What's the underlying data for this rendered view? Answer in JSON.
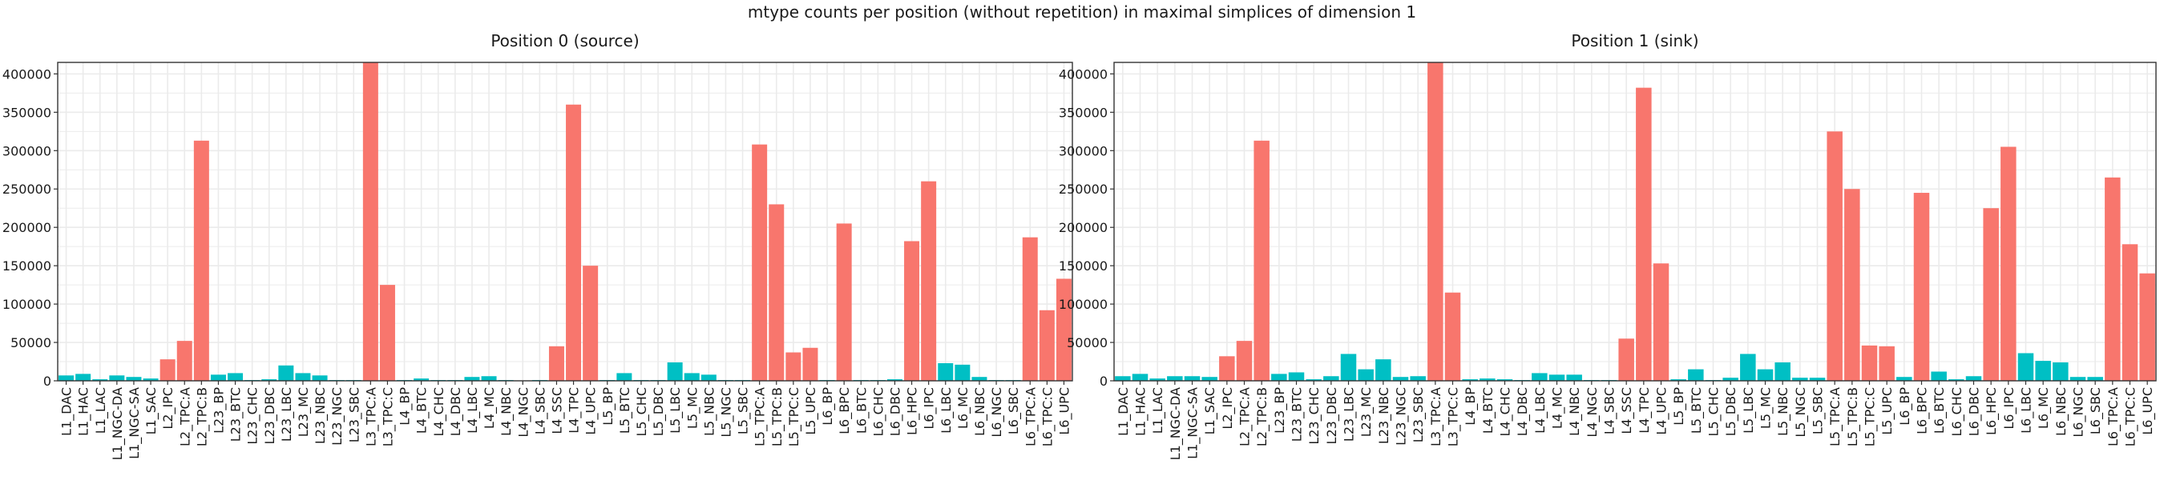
{
  "figure": {
    "title": "mtype counts per position (without repetition) in maximal simplices of dimension 1"
  },
  "colors": {
    "excitatory": "#F8766D",
    "inhibitory": "#00BFC4",
    "panel_bg": "#FFFFFF",
    "grid": "#EBEBEB",
    "border": "#333333"
  },
  "chart_data": [
    {
      "type": "bar",
      "title": "Position 0 (source)",
      "xlabel": "",
      "ylabel": "",
      "ylim": [
        0,
        415000
      ],
      "yticks": [
        0,
        50000,
        100000,
        150000,
        200000,
        250000,
        300000,
        350000,
        400000
      ],
      "grid": true,
      "legend": "none",
      "categories": [
        "L1_DAC",
        "L1_HAC",
        "L1_LAC",
        "L1_NGC-DA",
        "L1_NGC-SA",
        "L1_SAC",
        "L2_IPC",
        "L2_TPC:A",
        "L2_TPC:B",
        "L23_BP",
        "L23_BTC",
        "L23_CHC",
        "L23_DBC",
        "L23_LBC",
        "L23_MC",
        "L23_NBC",
        "L23_NGC",
        "L23_SBC",
        "L3_TPC:A",
        "L3_TPC:C",
        "L4_BP",
        "L4_BTC",
        "L4_CHC",
        "L4_DBC",
        "L4_LBC",
        "L4_MC",
        "L4_NBC",
        "L4_NGC",
        "L4_SBC",
        "L4_SSC",
        "L4_TPC",
        "L4_UPC",
        "L5_BP",
        "L5_BTC",
        "L5_CHC",
        "L5_DBC",
        "L5_LBC",
        "L5_MC",
        "L5_NBC",
        "L5_NGC",
        "L5_SBC",
        "L5_TPC:A",
        "L5_TPC:B",
        "L5_TPC:C",
        "L5_UPC",
        "L6_BP",
        "L6_BPC",
        "L6_BTC",
        "L6_CHC",
        "L6_DBC",
        "L6_HPC",
        "L6_IPC",
        "L6_LBC",
        "L6_MC",
        "L6_NBC",
        "L6_NGC",
        "L6_SBC",
        "L6_TPC:A",
        "L6_TPC:C",
        "L6_UPC"
      ],
      "groups": [
        "inhibitory",
        "inhibitory",
        "inhibitory",
        "inhibitory",
        "inhibitory",
        "inhibitory",
        "excitatory",
        "excitatory",
        "excitatory",
        "inhibitory",
        "inhibitory",
        "inhibitory",
        "inhibitory",
        "inhibitory",
        "inhibitory",
        "inhibitory",
        "inhibitory",
        "inhibitory",
        "excitatory",
        "excitatory",
        "inhibitory",
        "inhibitory",
        "inhibitory",
        "inhibitory",
        "inhibitory",
        "inhibitory",
        "inhibitory",
        "inhibitory",
        "inhibitory",
        "excitatory",
        "excitatory",
        "excitatory",
        "inhibitory",
        "inhibitory",
        "inhibitory",
        "inhibitory",
        "inhibitory",
        "inhibitory",
        "inhibitory",
        "inhibitory",
        "inhibitory",
        "excitatory",
        "excitatory",
        "excitatory",
        "excitatory",
        "inhibitory",
        "excitatory",
        "inhibitory",
        "inhibitory",
        "inhibitory",
        "excitatory",
        "excitatory",
        "inhibitory",
        "inhibitory",
        "inhibitory",
        "inhibitory",
        "inhibitory",
        "excitatory",
        "excitatory",
        "excitatory"
      ],
      "values": [
        7000,
        9000,
        2000,
        7000,
        5000,
        3000,
        28000,
        52000,
        313000,
        8000,
        10000,
        1000,
        2000,
        20000,
        10000,
        7000,
        1000,
        1000,
        415000,
        125000,
        1000,
        3000,
        1000,
        1000,
        5000,
        6000,
        1000,
        0,
        1000,
        45000,
        360000,
        150000,
        1000,
        10000,
        1000,
        1000,
        24000,
        10000,
        8000,
        1000,
        1000,
        308000,
        230000,
        37000,
        43000,
        1000,
        205000,
        1000,
        1000,
        2000,
        182000,
        260000,
        23000,
        21000,
        5000,
        1000,
        1000,
        187000,
        92000,
        133000
      ]
    },
    {
      "type": "bar",
      "title": "Position 1 (sink)",
      "xlabel": "",
      "ylabel": "",
      "ylim": [
        0,
        415000
      ],
      "yticks": [
        0,
        50000,
        100000,
        150000,
        200000,
        250000,
        300000,
        350000,
        400000
      ],
      "grid": true,
      "legend": "none",
      "categories": [
        "L1_DAC",
        "L1_HAC",
        "L1_LAC",
        "L1_NGC-DA",
        "L1_NGC-SA",
        "L1_SAC",
        "L2_IPC",
        "L2_TPC:A",
        "L2_TPC:B",
        "L23_BP",
        "L23_BTC",
        "L23_CHC",
        "L23_DBC",
        "L23_LBC",
        "L23_MC",
        "L23_NBC",
        "L23_NGC",
        "L23_SBC",
        "L3_TPC:A",
        "L3_TPC:C",
        "L4_BP",
        "L4_BTC",
        "L4_CHC",
        "L4_DBC",
        "L4_LBC",
        "L4_MC",
        "L4_NBC",
        "L4_NGC",
        "L4_SBC",
        "L4_SSC",
        "L4_TPC",
        "L4_UPC",
        "L5_BP",
        "L5_BTC",
        "L5_CHC",
        "L5_DBC",
        "L5_LBC",
        "L5_MC",
        "L5_NBC",
        "L5_NGC",
        "L5_SBC",
        "L5_TPC:A",
        "L5_TPC:B",
        "L5_TPC:C",
        "L5_UPC",
        "L6_BP",
        "L6_BPC",
        "L6_BTC",
        "L6_CHC",
        "L6_DBC",
        "L6_HPC",
        "L6_IPC",
        "L6_LBC",
        "L6_MC",
        "L6_NBC",
        "L6_NGC",
        "L6_SBC",
        "L6_TPC:A",
        "L6_TPC:C",
        "L6_UPC"
      ],
      "groups": [
        "inhibitory",
        "inhibitory",
        "inhibitory",
        "inhibitory",
        "inhibitory",
        "inhibitory",
        "excitatory",
        "excitatory",
        "excitatory",
        "inhibitory",
        "inhibitory",
        "inhibitory",
        "inhibitory",
        "inhibitory",
        "inhibitory",
        "inhibitory",
        "inhibitory",
        "inhibitory",
        "excitatory",
        "excitatory",
        "inhibitory",
        "inhibitory",
        "inhibitory",
        "inhibitory",
        "inhibitory",
        "inhibitory",
        "inhibitory",
        "inhibitory",
        "inhibitory",
        "excitatory",
        "excitatory",
        "excitatory",
        "inhibitory",
        "inhibitory",
        "inhibitory",
        "inhibitory",
        "inhibitory",
        "inhibitory",
        "inhibitory",
        "inhibitory",
        "inhibitory",
        "excitatory",
        "excitatory",
        "excitatory",
        "excitatory",
        "inhibitory",
        "excitatory",
        "inhibitory",
        "inhibitory",
        "inhibitory",
        "excitatory",
        "excitatory",
        "inhibitory",
        "inhibitory",
        "inhibitory",
        "inhibitory",
        "inhibitory",
        "excitatory",
        "excitatory",
        "excitatory"
      ],
      "values": [
        6000,
        9000,
        3000,
        6000,
        6000,
        5000,
        32000,
        52000,
        313000,
        9000,
        11000,
        2000,
        6000,
        35000,
        15000,
        28000,
        5000,
        6000,
        418000,
        115000,
        2000,
        3000,
        2000,
        1000,
        10000,
        8000,
        8000,
        1000,
        1000,
        55000,
        382000,
        153000,
        2000,
        15000,
        1000,
        4000,
        35000,
        15000,
        24000,
        4000,
        4000,
        325000,
        250000,
        46000,
        45000,
        5000,
        245000,
        12000,
        2000,
        6000,
        225000,
        305000,
        36000,
        26000,
        24000,
        5000,
        5000,
        265000,
        178000,
        140000
      ]
    }
  ]
}
